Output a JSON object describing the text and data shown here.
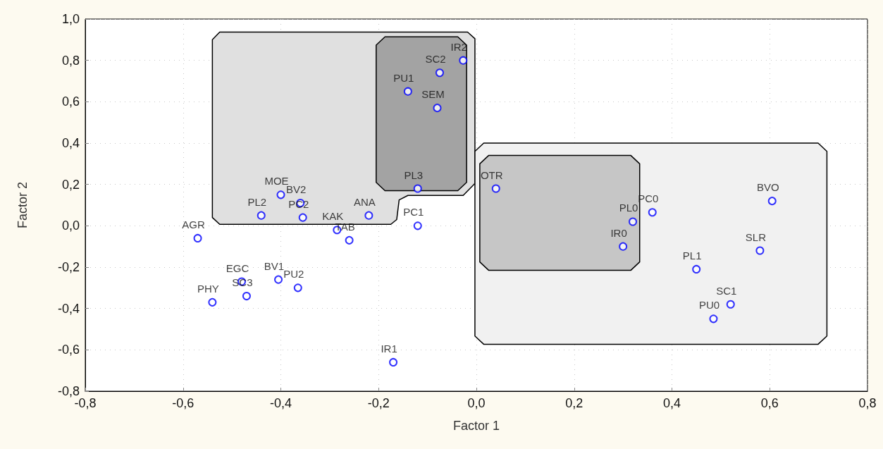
{
  "chart_data": {
    "type": "scatter",
    "xlabel": "Factor 1",
    "ylabel": "Factor 2",
    "series": [
      {
        "type": "area",
        "color": "#e0e0e0",
        "x": [
          -0.525,
          -0.018,
          -0.003,
          -0.003,
          -0.027,
          -0.14,
          -0.158,
          -0.163,
          -0.175,
          -0.525,
          -0.54,
          -0.54
        ],
        "values": [
          0.937,
          0.937,
          0.905,
          0.205,
          0.147,
          0.147,
          0.125,
          0.03,
          0.007,
          0.007,
          0.04,
          0.9
        ]
      },
      {
        "type": "area",
        "color": "#a3a3a3",
        "x": [
          -0.187,
          -0.038,
          -0.02,
          -0.02,
          -0.038,
          -0.187,
          -0.205,
          -0.205
        ],
        "values": [
          0.914,
          0.914,
          0.874,
          0.21,
          0.17,
          0.17,
          0.21,
          0.874
        ]
      },
      {
        "type": "area",
        "color": "#f1f1f1",
        "x": [
          0.015,
          0.699,
          0.717,
          0.717,
          0.699,
          0.015,
          -0.003,
          -0.003
        ],
        "values": [
          0.4,
          0.4,
          0.36,
          -0.533,
          -0.573,
          -0.573,
          -0.533,
          0.36
        ]
      },
      {
        "type": "area",
        "color": "#c6c6c6",
        "x": [
          0.025,
          0.316,
          0.334,
          0.334,
          0.316,
          0.025,
          0.007,
          0.007
        ],
        "values": [
          0.34,
          0.34,
          0.3,
          -0.175,
          -0.215,
          -0.215,
          -0.175,
          0.3
        ]
      },
      {
        "color": "#0000ff",
        "marker": "circle",
        "x": [
          -0.027,
          -0.075,
          -0.14,
          -0.08,
          -0.12,
          0.04,
          -0.4,
          -0.36,
          -0.44,
          -0.355,
          -0.22,
          -0.285,
          -0.26,
          -0.12,
          -0.57,
          0.605,
          0.36,
          0.32,
          0.3,
          0.58,
          0.45,
          0.52,
          0.485,
          -0.405,
          -0.365,
          -0.48,
          -0.47,
          -0.54,
          -0.17
        ],
        "values": [
          0.8,
          0.74,
          0.65,
          0.57,
          0.18,
          0.18,
          0.15,
          0.11,
          0.05,
          0.04,
          0.05,
          -0.02,
          -0.07,
          0.0,
          -0.06,
          0.12,
          0.065,
          0.02,
          -0.1,
          -0.12,
          -0.21,
          -0.38,
          -0.45,
          -0.26,
          -0.3,
          -0.27,
          -0.34,
          -0.37,
          -0.66
        ],
        "value_labels": [
          "IR2",
          "SC2",
          "PU1",
          "SEM",
          "PL3",
          "OTR",
          "MOE",
          "BV2",
          "PL2",
          "PC2",
          "ANA",
          "KAK",
          "TAB",
          "PC1",
          "AGR",
          "BVO",
          "PC0",
          "PL0",
          "IR0",
          "SLR",
          "PL1",
          "SC1",
          "PU0",
          "BV1",
          "PU2",
          "EGC",
          "SC3",
          "PHY",
          "IR1"
        ]
      }
    ],
    "grid": true,
    "xlim": [
      -0.8,
      0.8
    ],
    "xticks": [
      {
        "value": -0.8,
        "label": "-0,8"
      },
      {
        "value": -0.6,
        "label": "-0,6"
      },
      {
        "value": -0.4,
        "label": "-0,4"
      },
      {
        "value": -0.2,
        "label": "-0,2"
      },
      {
        "value": 0,
        "label": "0,0"
      },
      {
        "value": 0.2,
        "label": "0,2"
      },
      {
        "value": 0.4,
        "label": "0,4"
      },
      {
        "value": 0.6,
        "label": "0,6"
      },
      {
        "value": 0.8,
        "label": "0,8"
      }
    ],
    "ylim": [
      -0.8,
      1.0
    ],
    "yticks": [
      {
        "value": -0.8,
        "label": "-0,8"
      },
      {
        "value": -0.6,
        "label": "-0,6"
      },
      {
        "value": -0.4,
        "label": "-0,4"
      },
      {
        "value": -0.2,
        "label": "-0,2"
      },
      {
        "value": 0,
        "label": "0,0"
      },
      {
        "value": 0.2,
        "label": "0,2"
      },
      {
        "value": 0.4,
        "label": "0,4"
      },
      {
        "value": 0.6,
        "label": "0,6"
      },
      {
        "value": 0.8,
        "label": "0,8"
      },
      {
        "value": 1.0,
        "label": "1,0"
      }
    ]
  }
}
